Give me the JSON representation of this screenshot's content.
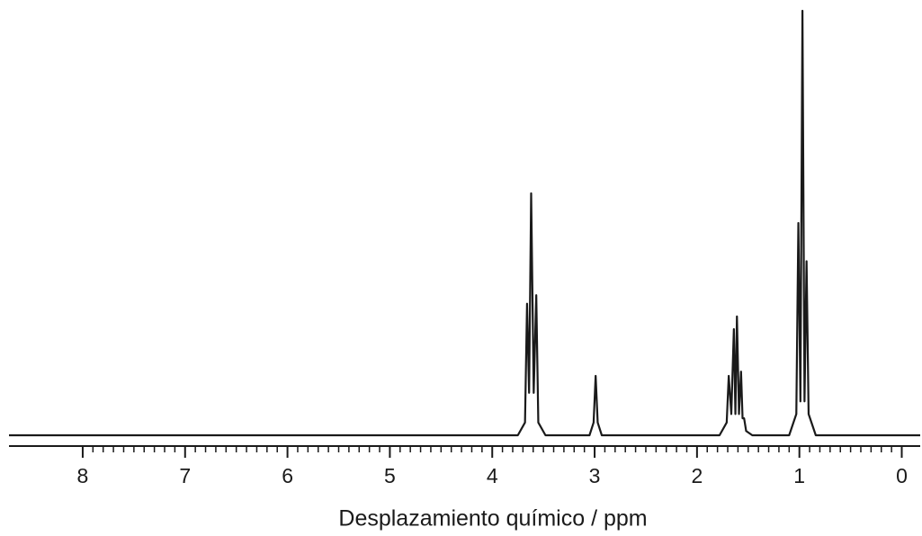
{
  "chart_data": {
    "type": "line",
    "x_label": "Desplazamiento químico / ppm",
    "x": [
      8.72,
      3.75,
      3.68,
      3.66,
      3.64,
      3.62,
      3.595,
      3.57,
      3.55,
      3.48,
      3.05,
      3.01,
      2.99,
      2.97,
      2.93,
      1.78,
      1.71,
      1.69,
      1.665,
      1.64,
      1.625,
      1.61,
      1.59,
      1.57,
      1.555,
      1.54,
      1.52,
      1.46,
      1.1,
      1.03,
      1.01,
      0.99,
      0.97,
      0.95,
      0.93,
      0.91,
      0.84,
      -0.18
    ],
    "series": [
      {
        "color": "#1a1a1a",
        "values": [
          0,
          0,
          3,
          31,
          10,
          57,
          10,
          33,
          3,
          0,
          0,
          3,
          14,
          3,
          0,
          0,
          3,
          14,
          5,
          25,
          5,
          28,
          5,
          15,
          4,
          4,
          1,
          0,
          0,
          5,
          50,
          8,
          100,
          8,
          41,
          5,
          0,
          0
        ]
      }
    ],
    "xlim": [
      8.72,
      -0.18
    ],
    "ylim": [
      0,
      100
    ],
    "xticks": [
      8,
      7,
      6,
      5,
      4,
      3,
      2,
      1,
      0
    ],
    "xminorticks": [
      7.9,
      7.8,
      7.7,
      7.6,
      7.5,
      7.4,
      7.3,
      7.2,
      7.1,
      6.9,
      6.8,
      6.7,
      6.6,
      6.5,
      6.4,
      6.3,
      6.2,
      6.1,
      5.9,
      5.8,
      5.7,
      5.6,
      5.5,
      5.4,
      5.3,
      5.2,
      5.1,
      4.9,
      4.8,
      4.7,
      4.6,
      4.5,
      4.4,
      4.3,
      4.2,
      4.1,
      3.9,
      3.8,
      3.7,
      3.6,
      3.5,
      3.4,
      3.3,
      3.2,
      3.1,
      2.9,
      2.8,
      2.7,
      2.6,
      2.5,
      2.4,
      2.3,
      2.2,
      2.1,
      1.9,
      1.8,
      1.7,
      1.6,
      1.5,
      1.4,
      1.3,
      1.2,
      1.1,
      0.9,
      0.8,
      0.7,
      0.6,
      0.5,
      0.4,
      0.3,
      0.2,
      0.1
    ]
  }
}
